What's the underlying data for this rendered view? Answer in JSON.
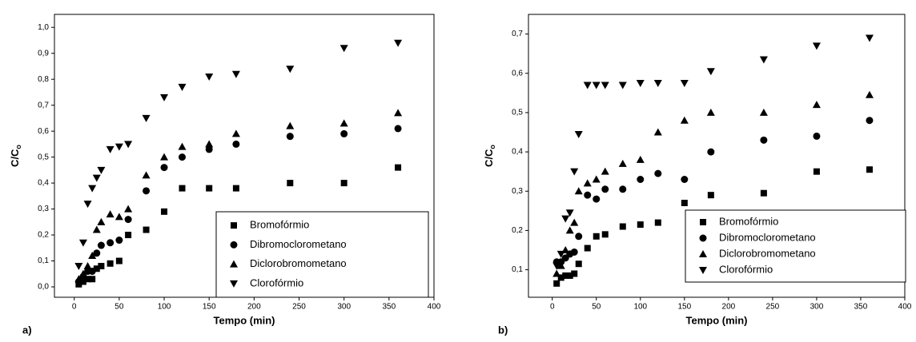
{
  "chart_data": [
    {
      "type": "scatter",
      "panel_label": "a)",
      "xlabel": "Tempo (min)",
      "ylabel": "C/C",
      "ylabel_subscript": "o",
      "x": [
        5,
        10,
        15,
        20,
        25,
        30,
        40,
        50,
        60,
        80,
        100,
        120,
        150,
        180,
        240,
        300,
        360
      ],
      "xlim": [
        -22,
        400
      ],
      "xticks": [
        0,
        50,
        100,
        150,
        200,
        250,
        300,
        350,
        400
      ],
      "ylim": [
        -0.04,
        1.05
      ],
      "yticks": [
        {
          "value": 0,
          "label": "0,0"
        },
        {
          "value": 0.1,
          "label": "0,1"
        },
        {
          "value": 0.2,
          "label": "0,2"
        },
        {
          "value": 0.3,
          "label": "0,3"
        },
        {
          "value": 0.4,
          "label": "0,4"
        },
        {
          "value": 0.5,
          "label": "0,5"
        },
        {
          "value": 0.6,
          "label": "0,6"
        },
        {
          "value": 0.7,
          "label": "0,7"
        },
        {
          "value": 0.8,
          "label": "0,8"
        },
        {
          "value": 0.9,
          "label": "0,9"
        },
        {
          "value": 1.0,
          "label": "1,0"
        }
      ],
      "legend": "lower right",
      "series": [
        {
          "name": "Bromofórmio",
          "color": "#000000",
          "marker": "square",
          "values": [
            0.01,
            0.02,
            0.03,
            0.03,
            0.07,
            0.08,
            0.09,
            0.1,
            0.2,
            0.22,
            0.29,
            0.38,
            0.38,
            0.38,
            0.4,
            0.4,
            0.46
          ]
        },
        {
          "name": "Dibromoclorometano",
          "color": "#000000",
          "marker": "circle",
          "values": [
            0.02,
            0.04,
            0.06,
            0.06,
            0.13,
            0.16,
            0.17,
            0.18,
            0.26,
            0.37,
            0.46,
            0.5,
            0.53,
            0.55,
            0.58,
            0.59,
            0.61
          ]
        },
        {
          "name": "Diclorobromometano",
          "color": "#000000",
          "marker": "triangle-up",
          "values": [
            0.03,
            0.05,
            0.08,
            0.12,
            0.22,
            0.25,
            0.28,
            0.27,
            0.3,
            0.43,
            0.5,
            0.54,
            0.55,
            0.59,
            0.62,
            0.63,
            0.67
          ]
        },
        {
          "name": "Clorofórmio",
          "color": "#000000",
          "marker": "triangle-down",
          "values": [
            0.08,
            0.17,
            0.32,
            0.38,
            0.42,
            0.45,
            0.53,
            0.54,
            0.55,
            0.65,
            0.73,
            0.77,
            0.81,
            0.82,
            0.84,
            0.92,
            0.94
          ]
        }
      ]
    },
    {
      "type": "scatter",
      "panel_label": "b)",
      "xlabel": "Tempo (min)",
      "ylabel": "C/C",
      "ylabel_subscript": "o",
      "x": [
        5,
        10,
        15,
        20,
        25,
        30,
        40,
        50,
        60,
        80,
        100,
        120,
        150,
        180,
        240,
        300,
        360
      ],
      "xlim": [
        -27,
        400
      ],
      "xticks": [
        0,
        50,
        100,
        150,
        200,
        250,
        300,
        350,
        400
      ],
      "ylim": [
        0.03,
        0.75
      ],
      "yticks": [
        {
          "value": 0.1,
          "label": "0,1"
        },
        {
          "value": 0.2,
          "label": "0,2"
        },
        {
          "value": 0.3,
          "label": "0,3"
        },
        {
          "value": 0.4,
          "label": "0,4"
        },
        {
          "value": 0.5,
          "label": "0,5"
        },
        {
          "value": 0.6,
          "label": "0,6"
        },
        {
          "value": 0.7,
          "label": "0,7"
        }
      ],
      "legend": "lower right",
      "series": [
        {
          "name": "Bromofórmio",
          "color": "#000000",
          "marker": "square",
          "values": [
            0.065,
            0.08,
            0.085,
            0.085,
            0.09,
            0.115,
            0.155,
            0.185,
            0.19,
            0.21,
            0.215,
            0.22,
            0.27,
            0.29,
            0.295,
            0.35,
            0.355
          ]
        },
        {
          "name": "Dibromoclorometano",
          "color": "#000000",
          "marker": "circle",
          "values": [
            0.12,
            0.12,
            0.13,
            0.14,
            0.145,
            0.185,
            0.29,
            0.28,
            0.305,
            0.305,
            0.33,
            0.345,
            0.33,
            0.4,
            0.43,
            0.44,
            0.48
          ]
        },
        {
          "name": "Diclorobromometano",
          "color": "#000000",
          "marker": "triangle-up",
          "values": [
            0.09,
            0.11,
            0.15,
            0.2,
            0.22,
            0.3,
            0.32,
            0.33,
            0.35,
            0.37,
            0.38,
            0.45,
            0.48,
            0.5,
            0.5,
            0.52,
            0.545
          ]
        },
        {
          "name": "Clorofórmio",
          "color": "#000000",
          "marker": "triangle-down",
          "values": [
            0.11,
            0.14,
            0.23,
            0.245,
            0.35,
            0.445,
            0.57,
            0.57,
            0.57,
            0.57,
            0.575,
            0.575,
            0.575,
            0.605,
            0.635,
            0.67,
            0.69
          ]
        }
      ]
    }
  ]
}
